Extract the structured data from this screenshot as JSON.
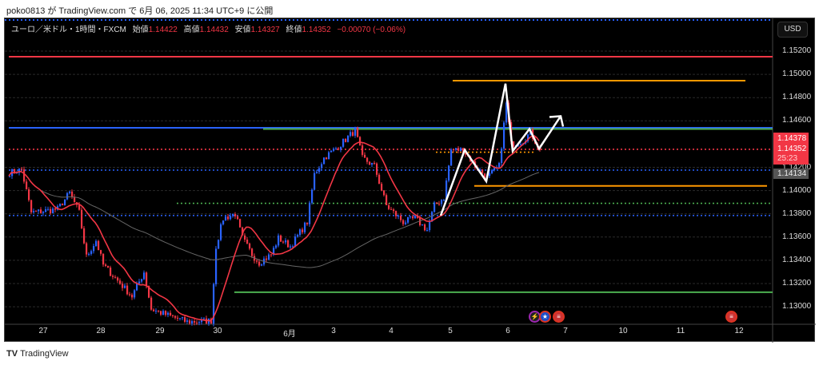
{
  "published": "poko0813 が TradingView.com で 6月 06, 2025 11:34 UTC+9 に公開",
  "legend": {
    "symbol": "ユーロ／米ドル・1時間・FXCM",
    "open_label": "始値",
    "open": "1.14422",
    "high_label": "高値",
    "high": "1.14432",
    "low_label": "安値",
    "low": "1.14327",
    "close_label": "終値",
    "close": "1.14352",
    "change": "−0.00070 (−0.06%)"
  },
  "currency_button": "USD",
  "price_axis": [
    "1.15200",
    "1.15000",
    "1.14800",
    "1.14600",
    "1.14200",
    "1.14000",
    "1.13800",
    "1.13600",
    "1.13400",
    "1.13200",
    "1.13000"
  ],
  "badges": {
    "alert_price": "1.14378",
    "last_price": "1.14352",
    "countdown": "25:23",
    "ma_price": "1.14134"
  },
  "time_axis": [
    "27",
    "28",
    "29",
    "30",
    "6月",
    "3",
    "4",
    "5",
    "6",
    "7",
    "10",
    "11",
    "12"
  ],
  "events": [
    {
      "icon": "lightning-icon",
      "color": "#9c27b0"
    },
    {
      "icon": "eu-flag-icon",
      "color": "#1e50c8"
    },
    {
      "icon": "us-flag-icon",
      "color": "#c33"
    },
    {
      "icon": "us-flag-icon",
      "color": "#c33"
    }
  ],
  "footer": "TradingView",
  "colors": {
    "up": "#2962ff",
    "down": "#f23645",
    "ma_fast": "#f23645",
    "ma_slow": "#666666"
  },
  "chart_data": {
    "type": "candlestick",
    "symbol": "EURUSD 1H",
    "ylim": [
      1.1285,
      1.1548
    ],
    "path": [
      [
        0,
        1.14155
      ],
      [
        5,
        1.1418
      ],
      [
        9,
        1.1381
      ],
      [
        20,
        1.1384
      ],
      [
        25,
        1.1398
      ],
      [
        29,
        1.1381
      ],
      [
        32,
        1.1343
      ],
      [
        36,
        1.1357
      ],
      [
        39,
        1.1336
      ],
      [
        51,
        1.1309
      ],
      [
        56,
        1.133
      ],
      [
        59,
        1.1298
      ],
      [
        64,
        1.1294
      ],
      [
        74,
        1.1287
      ],
      [
        84,
        1.1288
      ],
      [
        86,
        1.1352
      ],
      [
        89,
        1.1376
      ],
      [
        94,
        1.138
      ],
      [
        97,
        1.1359
      ],
      [
        101,
        1.1345
      ],
      [
        104,
        1.1338
      ],
      [
        109,
        1.1345
      ],
      [
        112,
        1.1359
      ],
      [
        117,
        1.1352
      ],
      [
        124,
        1.1373
      ],
      [
        127,
        1.1414
      ],
      [
        131,
        1.1428
      ],
      [
        137,
        1.1438
      ],
      [
        144,
        1.1452
      ],
      [
        147,
        1.1428
      ],
      [
        152,
        1.1421
      ],
      [
        157,
        1.1387
      ],
      [
        164,
        1.1373
      ],
      [
        169,
        1.1376
      ],
      [
        174,
        1.1366
      ],
      [
        177,
        1.1387
      ],
      [
        181,
        1.1394
      ],
      [
        184,
        1.1435
      ],
      [
        189,
        1.1435
      ],
      [
        194,
        1.1421
      ],
      [
        199,
        1.1411
      ],
      [
        204,
        1.1421
      ],
      [
        207,
        1.1475
      ],
      [
        209,
        1.144
      ],
      [
        214,
        1.1443
      ],
      [
        217,
        1.145
      ],
      [
        221,
        1.14352
      ]
    ],
    "levels": [
      {
        "price": 1.15152,
        "color": "#f23645",
        "style": "solid",
        "from": 0
      },
      {
        "price": 1.14946,
        "color": "#ff9800",
        "style": "solid",
        "from": 185,
        "to": 307
      },
      {
        "price": 1.1454,
        "color": "#2962ff",
        "style": "solid",
        "from": 0
      },
      {
        "price": 1.1453,
        "color": "#4caf50",
        "style": "solid",
        "from": 106
      },
      {
        "price": 1.14355,
        "color": "#f23645",
        "style": "dotted",
        "from": 0
      },
      {
        "price": 1.1433,
        "color": "#ff9800",
        "style": "dotted",
        "from": 178,
        "to": 219
      },
      {
        "price": 1.14176,
        "color": "#2962ff",
        "style": "dotted",
        "from": 0
      },
      {
        "price": 1.1404,
        "color": "#ff9800",
        "style": "solid",
        "from": 194,
        "to": 316
      },
      {
        "price": 1.1389,
        "color": "#4caf50",
        "style": "dotted",
        "from": 70
      },
      {
        "price": 1.13785,
        "color": "#2962ff",
        "style": "dotted",
        "from": 0
      },
      {
        "price": 1.13125,
        "color": "#4caf50",
        "style": "solid",
        "from": 94
      }
    ],
    "projection": [
      [
        180,
        1.13785
      ],
      [
        190,
        1.1435
      ],
      [
        199,
        1.1408
      ],
      [
        207,
        1.1492
      ],
      [
        210,
        1.1434
      ],
      [
        217,
        1.1453
      ],
      [
        221,
        1.1436
      ],
      [
        230,
        1.1464
      ]
    ]
  }
}
